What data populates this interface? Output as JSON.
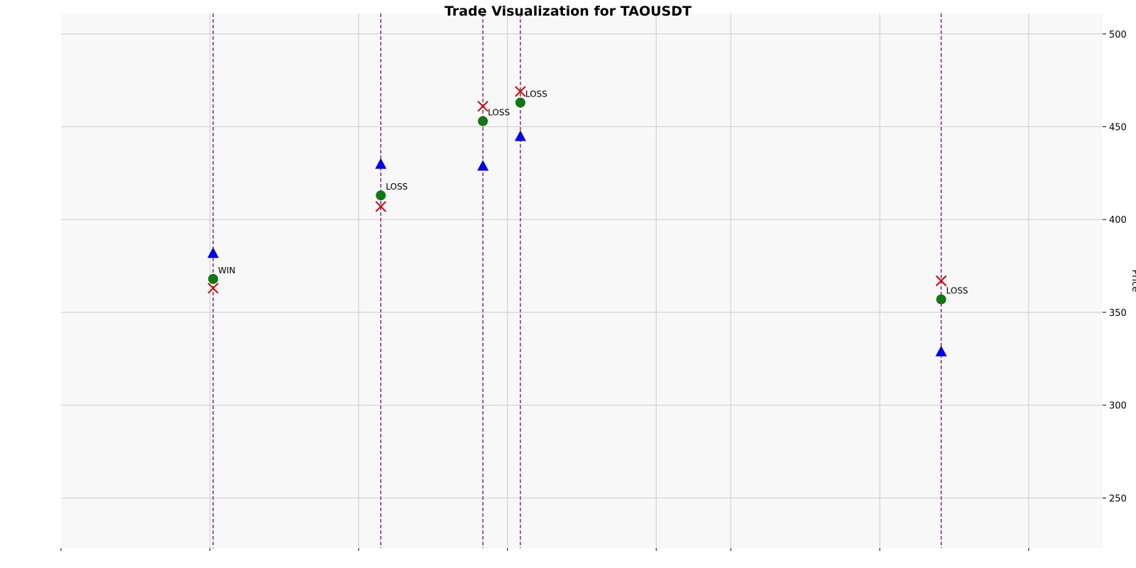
{
  "chart_data": {
    "type": "scatter",
    "title": "Trade Visualization for TAOUSDT",
    "ylabel": "Price",
    "ylim": [
      223,
      511
    ],
    "yticks": [
      250,
      300,
      350,
      400,
      450,
      500
    ],
    "y_axis_position": "right",
    "grid": true,
    "background": "#f8f8f8",
    "colors": {
      "entry": "#117711",
      "exit": "#dd0000",
      "target": "#0000ee",
      "trade_line": "#880088",
      "grid": "#cccccc"
    },
    "trades": [
      {
        "x": 0.146,
        "entry": 368,
        "exit": 363,
        "target": 382,
        "result": "WIN"
      },
      {
        "x": 0.307,
        "entry": 413,
        "exit": 407,
        "target": 430,
        "result": "LOSS"
      },
      {
        "x": 0.405,
        "entry": 453,
        "exit": 461,
        "target": 429,
        "result": "LOSS"
      },
      {
        "x": 0.441,
        "entry": 463,
        "exit": 469,
        "target": 445,
        "result": "LOSS"
      },
      {
        "x": 0.845,
        "entry": 357,
        "exit": 367,
        "target": 329,
        "result": "LOSS"
      }
    ]
  }
}
